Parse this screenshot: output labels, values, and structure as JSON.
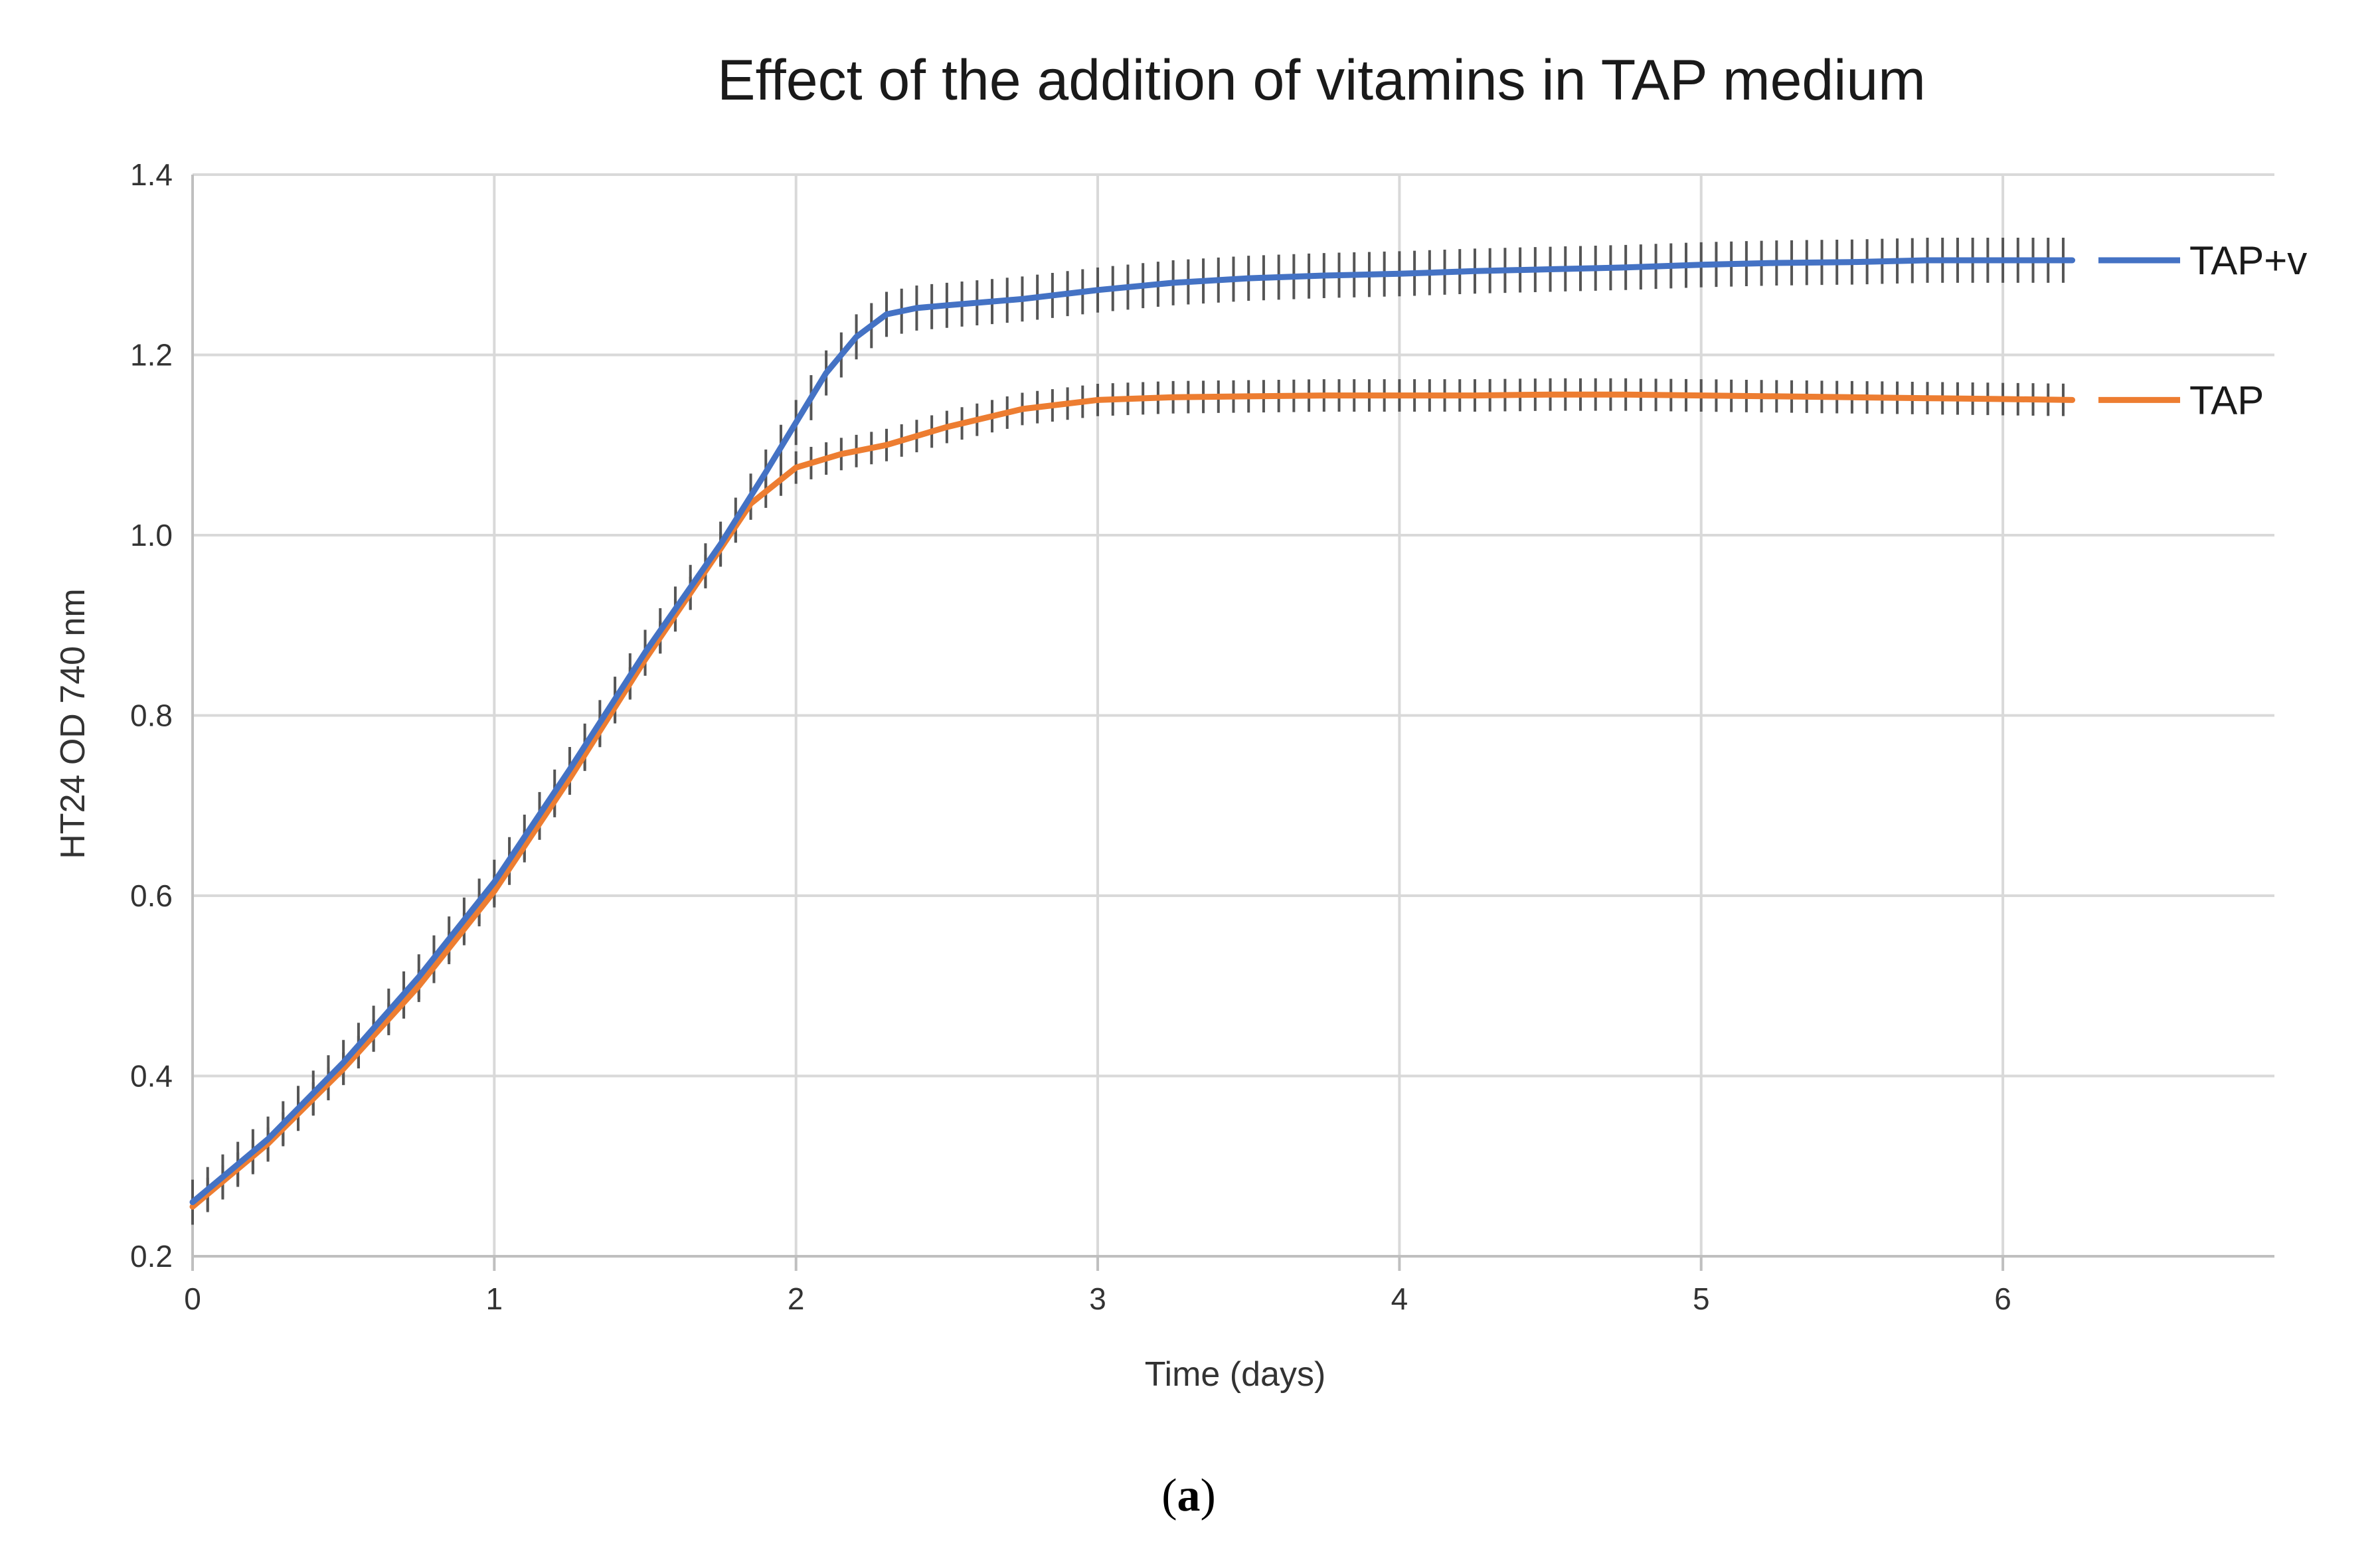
{
  "caption": {
    "open": "(",
    "letter": "a",
    "close": ")"
  },
  "chart_data": {
    "type": "line",
    "title": "Effect of the addition of vitamins in TAP medium",
    "xlabel": "Time (days)",
    "ylabel": "HT24 OD 740 nm",
    "xlim": [
      0,
      6.9
    ],
    "ylim": [
      0.2,
      1.4
    ],
    "x_ticks": [
      0,
      1,
      2,
      3,
      4,
      5,
      6
    ],
    "y_ticks": [
      0.2,
      0.4,
      0.6,
      0.8,
      1.0,
      1.2,
      1.4
    ],
    "x_tick_labels": [
      "0",
      "1",
      "2",
      "3",
      "4",
      "5",
      "6"
    ],
    "y_tick_labels": [
      "0.2",
      "0.4",
      "0.6",
      "0.8",
      "1.0",
      "1.2",
      "1.4"
    ],
    "grid": {
      "x": true,
      "y": true
    },
    "legend_position": "right (end of lines)",
    "error_bars": true,
    "error_bar_color": "#555555",
    "series": [
      {
        "name": "TAP+v",
        "color": "#4472c4",
        "error": 0.025,
        "points": [
          [
            0,
            0.26
          ],
          [
            0.25,
            0.33
          ],
          [
            0.5,
            0.415
          ],
          [
            0.75,
            0.51
          ],
          [
            1,
            0.615
          ],
          [
            1.25,
            0.74
          ],
          [
            1.5,
            0.87
          ],
          [
            1.75,
            0.99
          ],
          [
            1.9,
            1.07
          ],
          [
            2,
            1.125
          ],
          [
            2.1,
            1.18
          ],
          [
            2.2,
            1.22
          ],
          [
            2.3,
            1.245
          ],
          [
            2.4,
            1.252
          ],
          [
            2.5,
            1.255
          ],
          [
            2.75,
            1.262
          ],
          [
            3,
            1.272
          ],
          [
            3.25,
            1.28
          ],
          [
            3.5,
            1.285
          ],
          [
            3.75,
            1.288
          ],
          [
            4,
            1.29
          ],
          [
            4.25,
            1.293
          ],
          [
            4.5,
            1.295
          ],
          [
            4.75,
            1.297
          ],
          [
            5,
            1.3
          ],
          [
            5.25,
            1.302
          ],
          [
            5.5,
            1.303
          ],
          [
            5.75,
            1.305
          ],
          [
            6,
            1.305
          ],
          [
            6.23,
            1.305
          ]
        ]
      },
      {
        "name": "TAP",
        "color": "#ed7d31",
        "error": 0.018,
        "points": [
          [
            0,
            0.255
          ],
          [
            0.25,
            0.325
          ],
          [
            0.5,
            0.408
          ],
          [
            0.75,
            0.5
          ],
          [
            1,
            0.605
          ],
          [
            1.25,
            0.73
          ],
          [
            1.5,
            0.862
          ],
          [
            1.75,
            0.985
          ],
          [
            1.85,
            1.035
          ],
          [
            2,
            1.075
          ],
          [
            2.15,
            1.09
          ],
          [
            2.3,
            1.1
          ],
          [
            2.5,
            1.12
          ],
          [
            2.75,
            1.14
          ],
          [
            3,
            1.15
          ],
          [
            3.25,
            1.153
          ],
          [
            3.5,
            1.154
          ],
          [
            3.75,
            1.155
          ],
          [
            4,
            1.155
          ],
          [
            4.25,
            1.155
          ],
          [
            4.5,
            1.156
          ],
          [
            4.75,
            1.156
          ],
          [
            5,
            1.155
          ],
          [
            5.25,
            1.154
          ],
          [
            5.5,
            1.153
          ],
          [
            5.75,
            1.152
          ],
          [
            6,
            1.151
          ],
          [
            6.23,
            1.15
          ]
        ]
      }
    ]
  }
}
